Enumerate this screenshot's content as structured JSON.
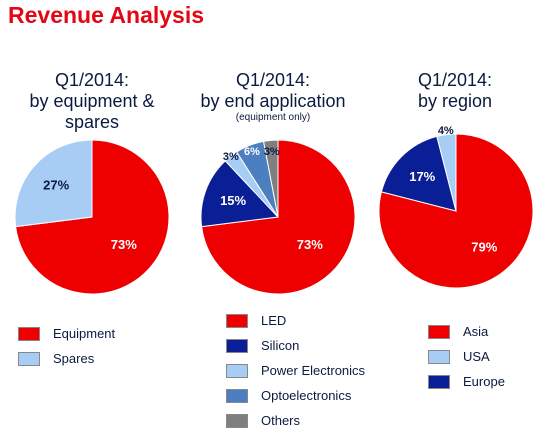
{
  "title": "Revenue Analysis",
  "colors": {
    "red": "#ee0000",
    "navy": "#0a1f96",
    "lightblue": "#a8cdf5",
    "steel": "#4b7fc0",
    "gray": "#7f7f7f"
  },
  "chart_data": [
    {
      "type": "pie",
      "title": "Q1/2014:",
      "subtitle": "by equipment & spares",
      "note": "",
      "slices": [
        {
          "label": "Equipment",
          "value": 73,
          "display": "73%",
          "color": "#ee0000"
        },
        {
          "label": "Spares",
          "value": 27,
          "display": "27%",
          "color": "#a8cdf5"
        }
      ]
    },
    {
      "type": "pie",
      "title": "Q1/2014:",
      "subtitle": "by end application",
      "note": "(equipment only)",
      "slices": [
        {
          "label": "LED",
          "value": 73,
          "display": "73%",
          "color": "#ee0000"
        },
        {
          "label": "Silicon",
          "value": 15,
          "display": "15%",
          "color": "#0a1f96"
        },
        {
          "label": "Power Electronics",
          "value": 3,
          "display": "3%",
          "color": "#a8cdf5"
        },
        {
          "label": "Optoelectronics",
          "value": 6,
          "display": "6%",
          "color": "#4b7fc0"
        },
        {
          "label": "Others",
          "value": 3,
          "display": "3%",
          "color": "#7f7f7f"
        }
      ]
    },
    {
      "type": "pie",
      "title": "Q1/2014:",
      "subtitle": "by region",
      "note": "",
      "slices": [
        {
          "label": "Asia",
          "value": 79,
          "display": "79%",
          "color": "#ee0000"
        },
        {
          "label": "Europe",
          "value": 17,
          "display": "17%",
          "color": "#0a1f96"
        },
        {
          "label": "USA",
          "value": 4,
          "display": "4%",
          "color": "#a8cdf5"
        }
      ]
    }
  ],
  "legends": [
    [
      {
        "label": "Equipment",
        "color": "#ee0000"
      },
      {
        "label": "Spares",
        "color": "#a8cdf5"
      }
    ],
    [
      {
        "label": "LED",
        "color": "#ee0000"
      },
      {
        "label": "Silicon",
        "color": "#0a1f96"
      },
      {
        "label": "Power Electronics",
        "color": "#a8cdf5"
      },
      {
        "label": "Optoelectronics",
        "color": "#4b7fc0"
      },
      {
        "label": "Others",
        "color": "#7f7f7f"
      }
    ],
    [
      {
        "label": "Asia",
        "color": "#ee0000"
      },
      {
        "label": "USA",
        "color": "#a8cdf5"
      },
      {
        "label": "Europe",
        "color": "#0a1f96"
      }
    ]
  ]
}
